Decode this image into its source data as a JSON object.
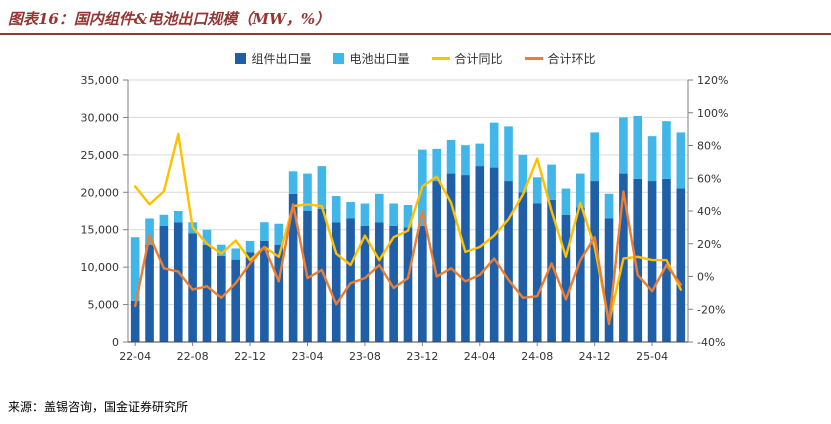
{
  "page": {
    "title": "图表16：国内组件&电池出口规模（MW，%）",
    "source": "来源：盖锡咨询，国金证券研究所"
  },
  "colors": {
    "title_red": "#943634",
    "component_bar": "#1F5FA8",
    "battery_bar": "#41B6E9",
    "yoy_line": "#FFC000",
    "mom_line": "#ED7D31",
    "gridline": "#D9D9D9",
    "axis": "#808080",
    "axis_text": "#333333"
  },
  "legend": [
    {
      "label": "组件出口量",
      "type": "bar",
      "color_key": "component_bar"
    },
    {
      "label": "电池出口量",
      "type": "bar",
      "color_key": "battery_bar"
    },
    {
      "label": "合计同比",
      "type": "line",
      "color_key": "yoy_line"
    },
    {
      "label": "合计环比",
      "type": "line",
      "color_key": "mom_line"
    }
  ],
  "chart_data": {
    "type": "combo",
    "title": "国内组件&电池出口规模（MW，%）",
    "categories": [
      "22-04",
      "22-05",
      "22-06",
      "22-07",
      "22-08",
      "22-09",
      "22-10",
      "22-11",
      "22-12",
      "23-01",
      "23-02",
      "23-03",
      "23-04",
      "23-05",
      "23-06",
      "23-07",
      "23-08",
      "23-09",
      "23-10",
      "23-11",
      "23-12",
      "24-01",
      "24-02",
      "24-03",
      "24-04",
      "24-05",
      "24-06",
      "24-07",
      "24-08",
      "24-09",
      "24-10",
      "24-11",
      "24-12",
      "25-01",
      "25-02",
      "25-03",
      "25-04",
      "25-05",
      "25-06"
    ],
    "x_tick_every": 4,
    "x_tick_labels": [
      "22-04",
      "22-08",
      "22-12",
      "23-04",
      "23-08",
      "23-12",
      "24-04",
      "24-08",
      "24-12",
      "25-04"
    ],
    "left_axis": {
      "min": 0,
      "max": 35000,
      "step": 5000,
      "tick_labels": [
        "0",
        "5,000",
        "10,000",
        "15,000",
        "20,000",
        "25,000",
        "30,000",
        "35,000"
      ]
    },
    "right_axis": {
      "min": -40,
      "max": 120,
      "step": 20,
      "tick_labels": [
        "-40%",
        "-20%",
        "0%",
        "20%",
        "40%",
        "60%",
        "80%",
        "100%",
        "120%"
      ]
    },
    "grid": true,
    "legend_position": "top",
    "series": [
      {
        "name": "组件出口量",
        "type": "bar",
        "stack": "total",
        "axis": "left",
        "values": [
          5500,
          13000,
          15500,
          16000,
          14500,
          13000,
          11500,
          11000,
          12000,
          13500,
          13000,
          19800,
          17500,
          17800,
          16000,
          16500,
          15500,
          16000,
          15500,
          15300,
          15500,
          21500,
          22500,
          22300,
          23500,
          23300,
          21500,
          20000,
          18500,
          19000,
          17000,
          18000,
          21500,
          16500,
          22500,
          21800,
          21500,
          21800,
          20500
        ]
      },
      {
        "name": "电池出口量",
        "type": "bar",
        "stack": "total",
        "axis": "left",
        "values": [
          8500,
          3500,
          1500,
          1500,
          1500,
          2000,
          1500,
          1500,
          1500,
          2500,
          2800,
          3000,
          5000,
          5700,
          3500,
          2200,
          3000,
          3800,
          3000,
          3000,
          10200,
          4300,
          4500,
          4000,
          3000,
          6000,
          7300,
          5000,
          3500,
          4700,
          3500,
          4500,
          6500,
          3300,
          7500,
          8400,
          6000,
          7700,
          7500
        ]
      },
      {
        "name": "合计同比",
        "type": "line",
        "axis": "right",
        "values": [
          55,
          44,
          52,
          87,
          30,
          20,
          14,
          22,
          10,
          18,
          12,
          43,
          44,
          43,
          14,
          7,
          25,
          10,
          24,
          28,
          55,
          61,
          45,
          15,
          18,
          25,
          35,
          50,
          72,
          40,
          12,
          45,
          18,
          -28,
          11,
          12,
          10,
          10,
          -8
        ]
      },
      {
        "name": "合计环比",
        "type": "line",
        "axis": "right",
        "values": [
          -18,
          25,
          5,
          3,
          -8,
          -6,
          -13,
          -4,
          8,
          18,
          -3,
          44,
          -1,
          4,
          -17,
          -4,
          -1,
          7,
          -7,
          -1,
          40,
          0,
          5,
          -3,
          1,
          11,
          -2,
          -13,
          -12,
          8,
          -14,
          10,
          24,
          -29,
          52,
          1,
          -9,
          7,
          -5
        ]
      }
    ]
  }
}
